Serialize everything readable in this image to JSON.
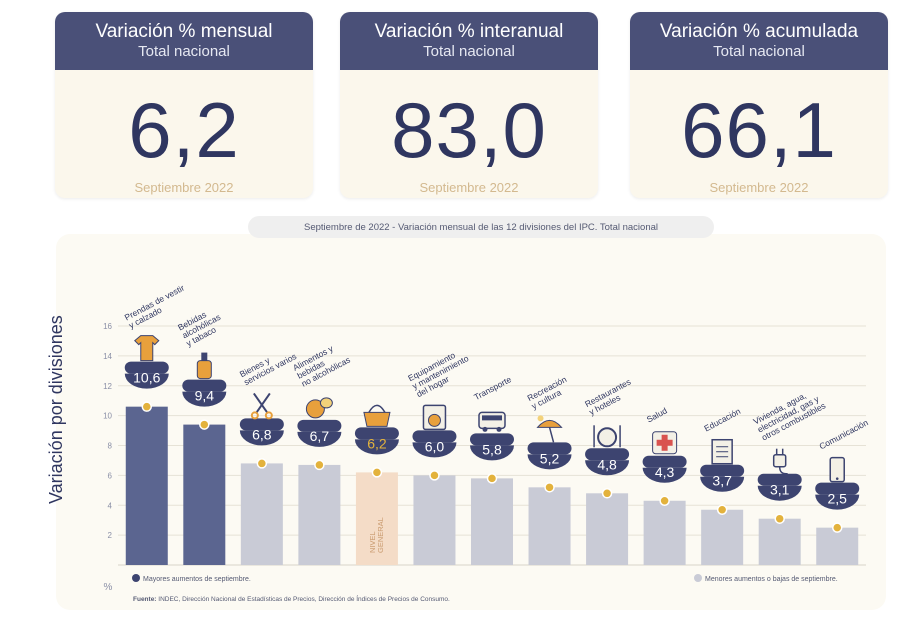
{
  "kpis": [
    {
      "title": "Variación % mensual",
      "subtitle": "Total nacional",
      "value": "6,2",
      "date": "Septiembre 2022"
    },
    {
      "title": "Variación % interanual",
      "subtitle": "Total nacional",
      "value": "83,0",
      "date": "Septiembre 2022"
    },
    {
      "title": "Variación % acumulada",
      "subtitle": "Total nacional",
      "value": "66,1",
      "date": "Septiembre 2022"
    }
  ],
  "chart_title": {
    "prefix": "Septiembre de 2022 - ",
    "main": "Variación mensual de las 12 divisiones del IPC. Total nacional"
  },
  "colors": {
    "header": "#4a5078",
    "dark_bar": "#5b6590",
    "light_bar": "#c9cbd6",
    "general_bar": "#f4dcc7",
    "marker": "#e3b23c",
    "bubble": "#3d4470",
    "general_bubble_text": "#e3b23c",
    "panel_bg": "#fcfaf3"
  },
  "chart_data": {
    "type": "bar",
    "ylabel": "Variación por divisiones",
    "ylim": [
      0,
      16
    ],
    "yticks": [
      2,
      4,
      6,
      8,
      10,
      12,
      14,
      16
    ],
    "y_unit_symbol": "%",
    "categories": [
      [
        "Prendas de vestir",
        "y calzado"
      ],
      [
        "Bebidas",
        "alcohólicas",
        "y tabaco"
      ],
      [
        "Bienes y",
        "servicios varios"
      ],
      [
        "Alimentos y",
        "bebidas",
        "no alcohólicas"
      ],
      [],
      [
        "Equipamiento",
        "y mantenimiento",
        "del hogar"
      ],
      [
        "Transporte"
      ],
      [
        "Recreación",
        "y cultura"
      ],
      [
        "Restaurantes",
        "y hoteles"
      ],
      [
        "Salud"
      ],
      [
        "Educación"
      ],
      [
        "Vivienda, agua,",
        "electricidad, gas y",
        "otros combustibles"
      ],
      [
        "Comunicación"
      ]
    ],
    "values": [
      10.6,
      9.4,
      6.8,
      6.7,
      6.2,
      6.0,
      5.8,
      5.2,
      4.8,
      4.3,
      3.7,
      3.1,
      2.5
    ],
    "value_labels": [
      "10,6",
      "9,4",
      "6,8",
      "6,7",
      "6,2",
      "6,0",
      "5,8",
      "5,2",
      "4,8",
      "4,3",
      "3,7",
      "3,1",
      "2,5"
    ],
    "groups": [
      "mayor",
      "mayor",
      "menor",
      "menor",
      "general",
      "menor",
      "menor",
      "menor",
      "menor",
      "menor",
      "menor",
      "menor",
      "menor"
    ],
    "icons": [
      "shirt-icon",
      "bottle-icon",
      "scissors-icon",
      "food-icon",
      "basket-icon",
      "home-appliance-icon",
      "bus-icon",
      "beach-icon",
      "dining-icon",
      "health-cross-icon",
      "book-icon",
      "plug-icon",
      "phone-icon"
    ],
    "general_bar_label": [
      "NIVEL",
      "GENERAL"
    ],
    "legend": {
      "mayor": "Mayores aumentos de septiembre.",
      "menor": "Menores aumentos o bajas de septiembre."
    }
  },
  "source": {
    "label": "Fuente:",
    "text": "INDEC, Dirección Nacional de Estadísticas de Precios, Dirección de Índices de Precios de Consumo."
  }
}
